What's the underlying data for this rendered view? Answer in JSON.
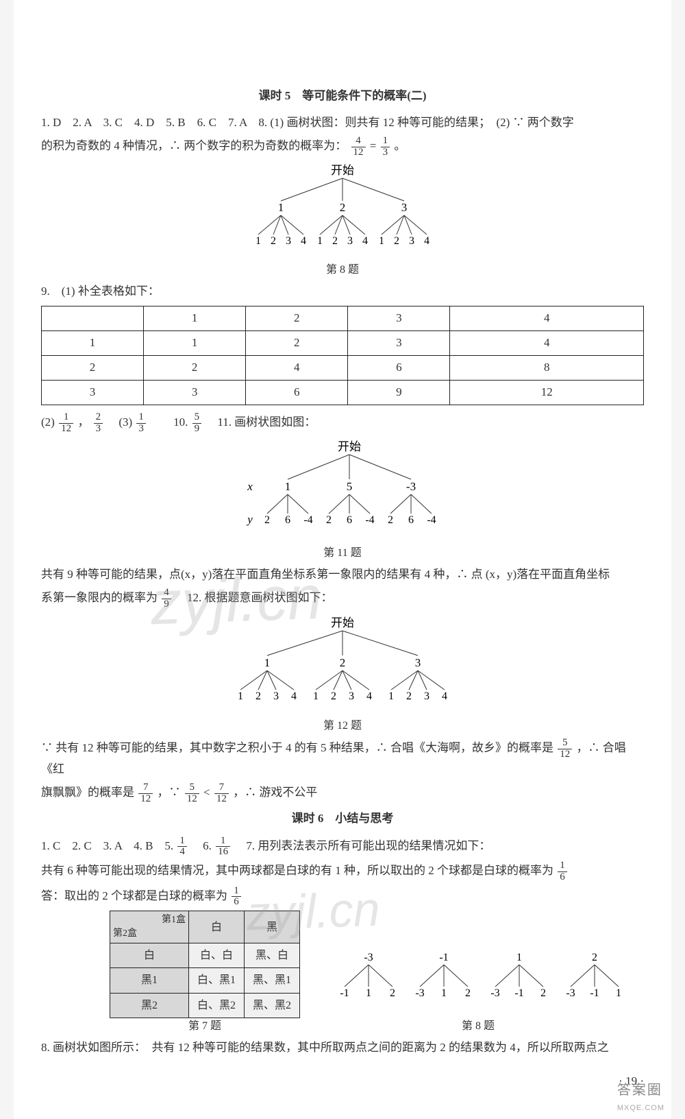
{
  "lesson5": {
    "title": "课时 5　等可能条件下的概率(二)",
    "line1_a": "1. D　2. A　3. C　4. D　5. B　6. C　7. A　8. (1) 画树状图：则共有 12 种等可能的结果；　(2) ∵ 两个数字",
    "line1_b": "的积为奇数的 4 种情况，∴ 两个数字的积为奇数的概率为：",
    "frac1": {
      "n": "4",
      "d": "12"
    },
    "eq": " = ",
    "frac2": {
      "n": "1",
      "d": "3"
    },
    "period": "。",
    "tree8_caption": "第 8 题",
    "tree8": {
      "root": "开始",
      "L1": [
        "1",
        "2",
        "3"
      ],
      "leaves": [
        "1",
        "2",
        "3",
        "4",
        "1",
        "2",
        "3",
        "4",
        "1",
        "2",
        "3",
        "4"
      ]
    },
    "q9_label": "9.　(1) 补全表格如下：",
    "table9": {
      "rows": [
        [
          "",
          "1",
          "2",
          "3",
          "4"
        ],
        [
          "1",
          "1",
          "2",
          "3",
          "4"
        ],
        [
          "2",
          "2",
          "4",
          "6",
          "8"
        ],
        [
          "3",
          "3",
          "6",
          "9",
          "12"
        ]
      ]
    },
    "line9b_a": "(2) ",
    "frac9b1": {
      "n": "1",
      "d": "12"
    },
    "comma": "，",
    "frac9b2": {
      "n": "2",
      "d": "3"
    },
    "line9b_b": "　(3) ",
    "frac9b3": {
      "n": "1",
      "d": "3"
    },
    "line9b_c": "　　10. ",
    "frac10": {
      "n": "5",
      "d": "9"
    },
    "line9b_d": "　11. 画树状图如图：",
    "tree11_caption": "第 11 题",
    "tree11": {
      "root": "开始",
      "xlabel": "x",
      "ylabel": "y",
      "L1": [
        "1",
        "5",
        "-3"
      ],
      "leaves": [
        "2",
        "6",
        "-4",
        "2",
        "6",
        "-4",
        "2",
        "6",
        "-4"
      ]
    },
    "line11a": "共有 9 种等可能的结果，点(x，y)落在平面直角坐标系第一象限内的结果有 4 种，∴ 点 (x，y)落在平面直角坐标",
    "line11b_a": "系第一象限内的概率为",
    "frac11": {
      "n": "4",
      "d": "9"
    },
    "line11b_b": "　12. 根据题意画树状图如下：",
    "tree12_caption": "第 12 题",
    "tree12": {
      "root": "开始",
      "L1": [
        "1",
        "2",
        "3"
      ],
      "leaves": [
        "1",
        "2",
        "3",
        "4",
        "1",
        "2",
        "3",
        "4",
        "1",
        "2",
        "3",
        "4"
      ]
    },
    "line12a_a": "∵ 共有 12 种等可能的结果，其中数字之积小于 4 的有 5 种结果，∴ 合唱《大海啊，故乡》的概率是",
    "frac12a": {
      "n": "5",
      "d": "12"
    },
    "line12a_b": "，∴ 合唱《红",
    "line12b_a": "旗飘飘》的概率是",
    "frac12b1": {
      "n": "7",
      "d": "12"
    },
    "line12b_b": "，∵ ",
    "frac12b2": {
      "n": "5",
      "d": "12"
    },
    "lt": " < ",
    "frac12b3": {
      "n": "7",
      "d": "12"
    },
    "line12b_c": "，∴ 游戏不公平"
  },
  "lesson6": {
    "title": "课时 6　小结与思考",
    "line1_a": "1. C　2. C　3. A　4. B　5. ",
    "frac5": {
      "n": "1",
      "d": "4"
    },
    "line1_b": "　6. ",
    "frac6": {
      "n": "1",
      "d": "16"
    },
    "line1_c": "　7. 用列表法表示所有可能出现的结果情况如下：",
    "line2_a": "共有 6 种等可能出现的结果情况，其中两球都是白球的有 1 种，所以取出的 2 个球都是白球的概率为",
    "frac7a": {
      "n": "1",
      "d": "6"
    },
    "line3_a": "答：取出的 2 个球都是白球的概率为",
    "frac7b": {
      "n": "1",
      "d": "6"
    },
    "table7": {
      "diag_tl": "第1盒",
      "diag_br": "第2盒",
      "cols": [
        "白",
        "黑"
      ],
      "rows": [
        [
          "白",
          "白、白",
          "黑、白"
        ],
        [
          "黑1",
          "白、黑1",
          "黑、黑1"
        ],
        [
          "黑2",
          "白、黑2",
          "黑、黑2"
        ]
      ],
      "caption": "第 7 题"
    },
    "tree8": {
      "L1": [
        "-3",
        "-1",
        "1",
        "2"
      ],
      "leaves": [
        [
          "-1",
          "1",
          "2"
        ],
        [
          "-3",
          "1",
          "2"
        ],
        [
          "-3",
          "-1",
          "2"
        ],
        [
          "-3",
          "-1",
          "1"
        ]
      ],
      "caption": "第 8 题"
    },
    "line8": "8. 画树状如图所示：　共有 12 种等可能的结果数，其中所取两点之间的距离为 2 的结果数为 4，所以所取两点之"
  },
  "pagenum": "· 19 ·",
  "corner": {
    "main": "答案圈",
    "sub": "MXQE.COM"
  }
}
